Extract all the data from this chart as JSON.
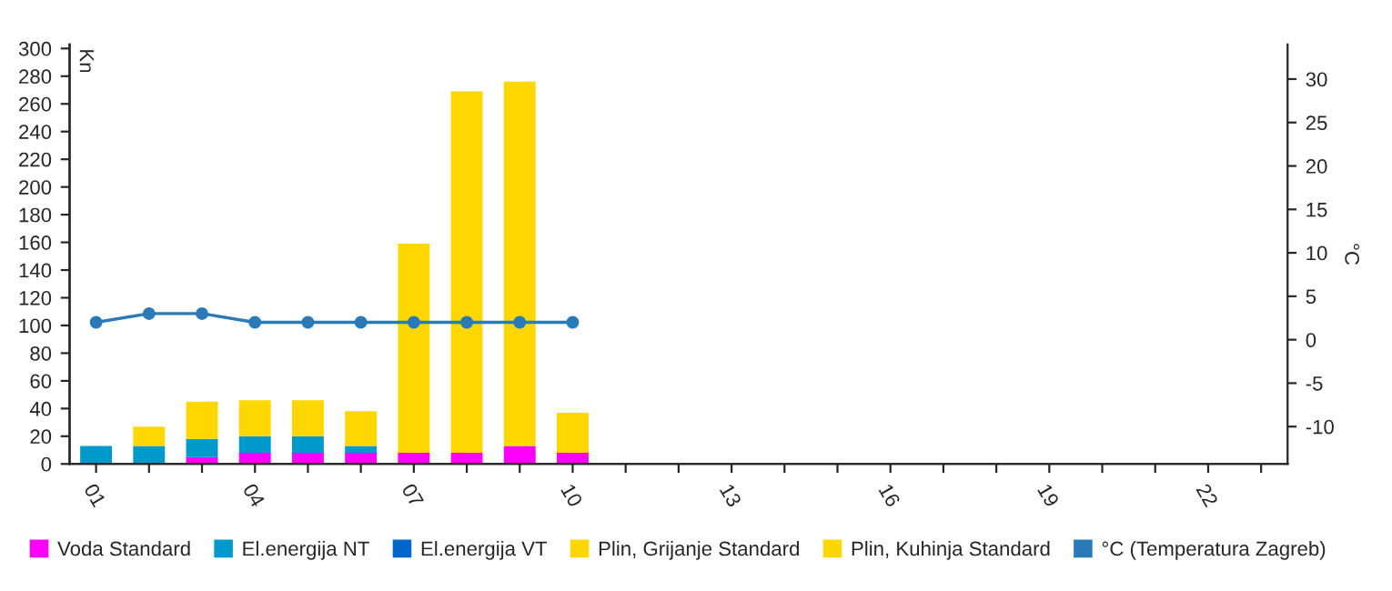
{
  "chart_data": {
    "type": "bar",
    "stacked": true,
    "ylabel": "Kn",
    "y2label": "°C",
    "categories": [
      "01",
      null,
      null,
      "04",
      null,
      null,
      "07",
      null,
      null,
      "10",
      null,
      null,
      "13",
      null,
      null,
      "16",
      null,
      null,
      "19",
      null,
      null,
      "22",
      null
    ],
    "series": [
      {
        "name": "Voda Standard",
        "color": "#ff00ff",
        "values": [
          null,
          null,
          5,
          8,
          8,
          8,
          8,
          8,
          13,
          8,
          null,
          null,
          null,
          null,
          null,
          null,
          null,
          null,
          null,
          null,
          null,
          null,
          null
        ]
      },
      {
        "name": "El.energija NT",
        "color": "#0099cc",
        "values": [
          13,
          13,
          13,
          12,
          12,
          5,
          null,
          null,
          null,
          null,
          null,
          null,
          null,
          null,
          null,
          null,
          null,
          null,
          null,
          null,
          null,
          null,
          null
        ]
      },
      {
        "name": "El.energija VT",
        "color": "#0066cc",
        "values": [
          null,
          null,
          null,
          null,
          null,
          null,
          null,
          null,
          null,
          null,
          null,
          null,
          null,
          null,
          null,
          null,
          null,
          null,
          null,
          null,
          null,
          null,
          null
        ]
      },
      {
        "name": "Plin, Grijanje Standard",
        "color": "#ffd700",
        "values": [
          null,
          14,
          27,
          26,
          26,
          25,
          151,
          261,
          263,
          29,
          null,
          null,
          null,
          null,
          null,
          null,
          null,
          null,
          null,
          null,
          null,
          null,
          null
        ]
      },
      {
        "name": "Plin, Kuhinja Standard",
        "color": "#ffd700",
        "values": [
          null,
          null,
          null,
          null,
          null,
          null,
          null,
          null,
          null,
          null,
          null,
          null,
          null,
          null,
          null,
          null,
          null,
          null,
          null,
          null,
          null,
          null,
          null
        ]
      },
      {
        "name": "°C (Temperatura Zagreb)",
        "color": "#2a7ab8",
        "type": "line",
        "axis": "y2",
        "marker": "circle",
        "values": [
          2,
          3,
          3,
          2,
          2,
          2,
          2,
          2,
          2,
          2,
          null,
          null,
          null,
          null,
          null,
          null,
          null,
          null,
          null,
          null,
          null,
          null,
          null
        ]
      }
    ],
    "ylim": [
      0,
      303
    ],
    "yticks": [
      0,
      20,
      40,
      60,
      80,
      100,
      120,
      140,
      160,
      180,
      200,
      220,
      240,
      260,
      280,
      300
    ],
    "y2lim": [
      -14.3,
      34
    ],
    "y2ticks": [
      -10,
      -5,
      0,
      5,
      10,
      15,
      20,
      25,
      30
    ],
    "grid": false,
    "legend": "bottom"
  }
}
